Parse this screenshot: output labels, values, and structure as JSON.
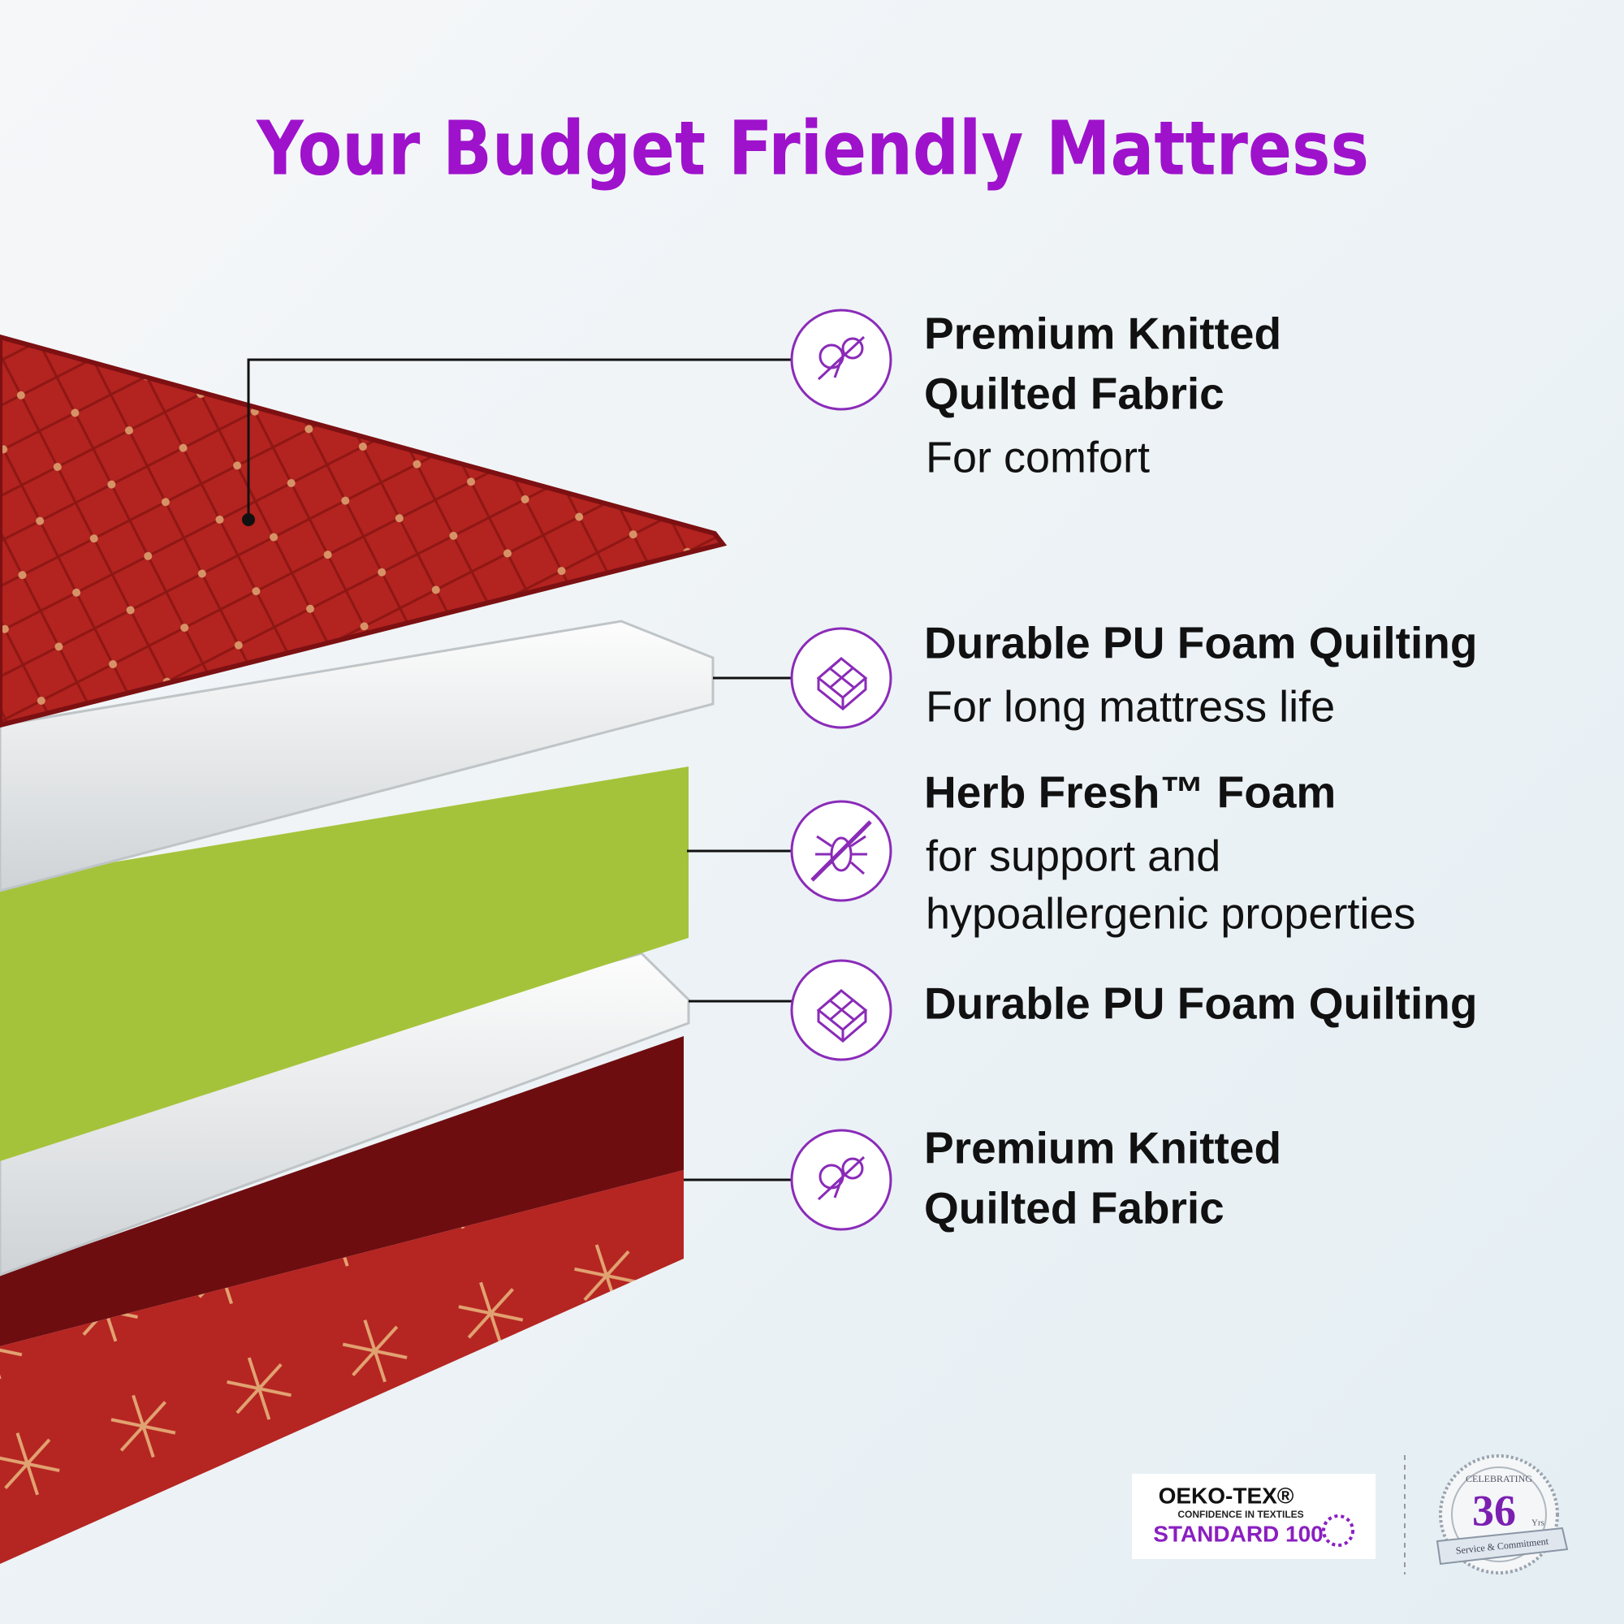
{
  "header": {
    "title": "Your Budget Friendly Mattress"
  },
  "layers": [
    {
      "title": [
        "Premium Knitted",
        "Quilted Fabric"
      ],
      "description": [
        "For comfort"
      ]
    },
    {
      "title": [
        "Durable PU Foam Quilting"
      ],
      "description": [
        "For long mattress life"
      ]
    },
    {
      "title": [
        "Herb Fresh™ Foam"
      ],
      "description": [
        "for support and",
        "hypoallergenic properties"
      ]
    },
    {
      "title": [
        "Durable PU Foam Quilting"
      ],
      "description": []
    },
    {
      "title": [
        "Premium Knitted",
        "Quilted Fabric"
      ],
      "description": []
    }
  ],
  "badges": {
    "oeko_tex": {
      "name": "OEKO-TEX®",
      "tagline": "CONFIDENCE IN TEXTILES",
      "standard": "STANDARD 100"
    },
    "anniversary": {
      "top": "CELEBRATING",
      "number": 36,
      "unit": "Yrs",
      "ribbon": "Service & Commitment"
    }
  }
}
